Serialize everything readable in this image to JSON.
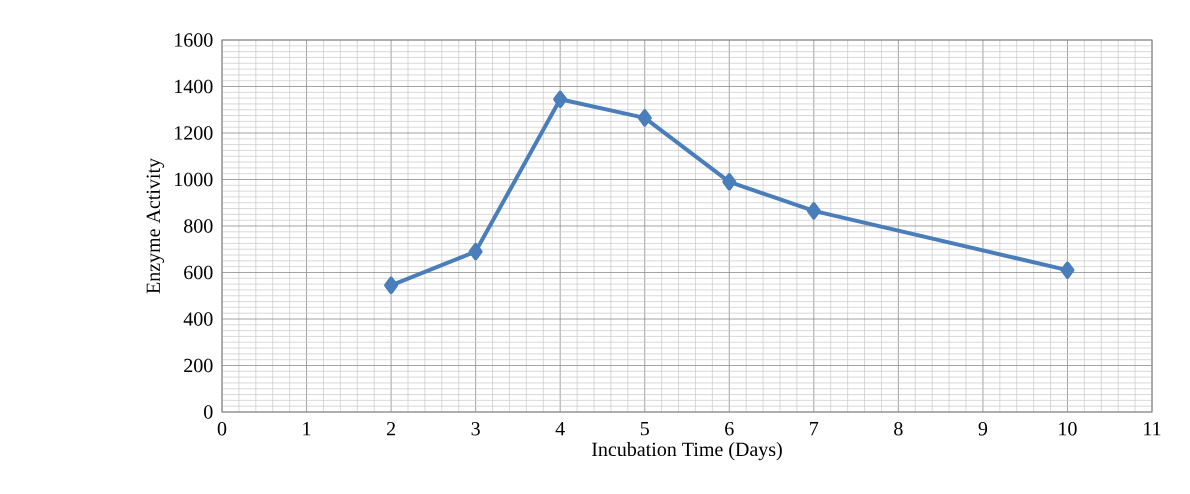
{
  "chart_data": {
    "type": "line",
    "xlabel": "Incubation Time (Days)",
    "ylabel": "Enzyme Activity",
    "x": [
      2,
      3,
      4,
      5,
      6,
      7,
      10
    ],
    "series": [
      {
        "color": "#4a7ebb",
        "values": [
          545,
          690,
          1345,
          1265,
          990,
          865,
          610
        ]
      }
    ],
    "xlim": [
      0,
      11
    ],
    "xticks": [
      0,
      1,
      2,
      3,
      4,
      5,
      6,
      7,
      8,
      9,
      10,
      11
    ],
    "ylim": [
      0,
      1600
    ],
    "yticks": [
      0,
      200,
      400,
      600,
      800,
      1000,
      1200,
      1400,
      1600
    ],
    "grid": true,
    "marker": "diamond",
    "line_style": "solid"
  }
}
